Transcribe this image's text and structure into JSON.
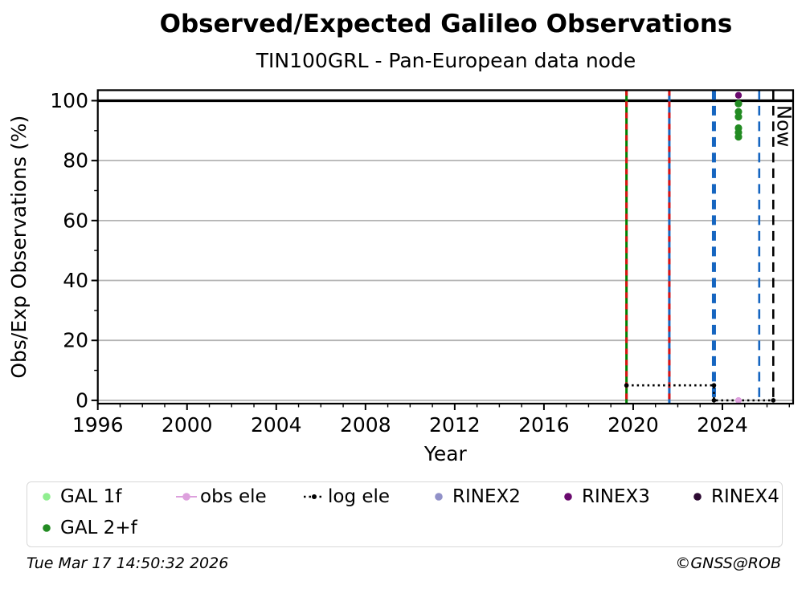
{
  "title": "Observed/Expected Galileo Observations",
  "subtitle": "TIN100GRL - Pan-European data node",
  "footer": {
    "timestamp": "Tue Mar 17 14:50:32 2026",
    "copyright": "©GNSS@ROB"
  },
  "legend": {
    "items": [
      {
        "label": "GAL 1f",
        "marker": "dot",
        "color": "#90EE90"
      },
      {
        "label": "obs ele",
        "marker": "line-dot",
        "color": "#DDA0DD"
      },
      {
        "label": "log ele",
        "marker": "dotted-line-dot",
        "color": "#000000"
      },
      {
        "label": "RINEX2",
        "marker": "dot",
        "color": "#9191c8"
      },
      {
        "label": "RINEX3",
        "marker": "dot",
        "color": "#6a0a6e"
      },
      {
        "label": "RINEX4",
        "marker": "dot",
        "color": "#2d0a32"
      },
      {
        "label": "GAL 2+f",
        "marker": "dot",
        "color": "#228B22"
      }
    ]
  },
  "chart_data": {
    "type": "scatter",
    "title": "Observed/Expected Galileo Observations",
    "subtitle": "TIN100GRL - Pan-European data node",
    "xlabel": "Year",
    "ylabel": "Obs/Exp Observations (%)",
    "xlim": [
      1996,
      2027.17
    ],
    "ylim": [
      -1.1,
      103.5
    ],
    "x_ticks": [
      1996,
      2000,
      2004,
      2008,
      2012,
      2016,
      2020,
      2024
    ],
    "x_minor_tick_step": 1,
    "y_ticks": [
      0,
      20,
      40,
      60,
      80,
      100
    ],
    "y_minor_ticks": [
      10,
      30,
      50,
      70,
      90
    ],
    "grid": "horizontal-gray-at-major-ticks-below-100",
    "grid_color": "#b3b3b3",
    "hline": {
      "y": 100,
      "color": "#000000",
      "width": 3.2
    },
    "vlines": [
      {
        "x": 2019.7,
        "color": "#008000",
        "style": "solid",
        "width": 3,
        "overlay": {
          "color": "#dd1111",
          "style": "dashed"
        }
      },
      {
        "x": 2021.62,
        "color": "#1565c0",
        "style": "solid",
        "width": 3,
        "overlay": {
          "color": "#dd1111",
          "style": "dashed"
        }
      },
      {
        "x": 2023.62,
        "color": "#1565c0",
        "style": "dashed",
        "width": 5
      },
      {
        "x": 2025.65,
        "color": "#1565c0",
        "style": "dashed",
        "width": 2.6
      },
      {
        "x": 2026.28,
        "color": "#000000",
        "style": "dashed",
        "width": 2.6,
        "label": "Now"
      }
    ],
    "now_label": "Now",
    "series": [
      {
        "name": "log ele",
        "type": "line",
        "linestyle": "dotted",
        "color": "#000000",
        "marker_r": 2.8,
        "points": [
          [
            2019.7,
            5
          ],
          [
            2023.62,
            5
          ],
          [
            2023.62,
            0
          ],
          [
            2026.28,
            0
          ]
        ]
      },
      {
        "name": "obs ele",
        "type": "scatter",
        "color": "#DDA0DD",
        "marker_r": 4,
        "points": [
          [
            2024.72,
            0
          ]
        ]
      },
      {
        "name": "GAL 2+f",
        "type": "scatter",
        "color": "#228B22",
        "marker_r": 4.6,
        "points": [
          [
            2024.72,
            99.0
          ],
          [
            2024.72,
            96.3
          ],
          [
            2024.72,
            94.6
          ],
          [
            2024.72,
            90.9
          ],
          [
            2024.72,
            89.4
          ],
          [
            2024.72,
            87.9
          ]
        ]
      },
      {
        "name": "RINEX3",
        "type": "scatter",
        "color": "#6a0a6e",
        "marker_r": 4.2,
        "points": [
          [
            2024.72,
            101.8
          ]
        ]
      }
    ]
  }
}
